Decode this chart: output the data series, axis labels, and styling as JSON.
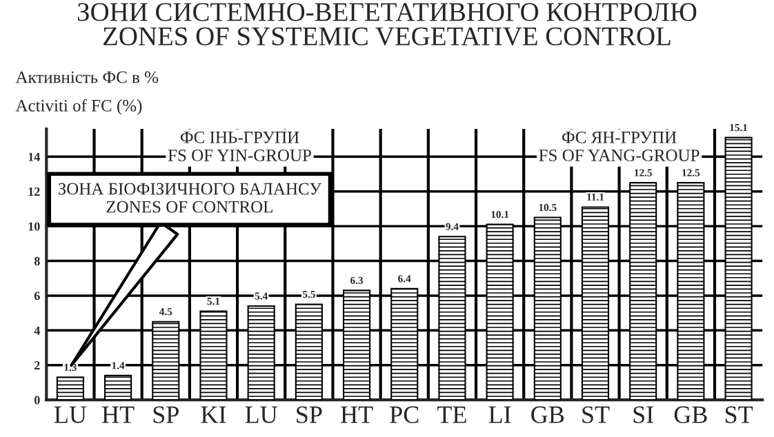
{
  "chart_data": {
    "type": "bar",
    "title": "ЗОНИ СИСТЕМНО-ВЕГЕТАТИВНОГО КОНТРОЛЮ\nZONES OF SYSTEMIC VEGETATIVE CONTROL",
    "ylabel": "Активність ФС в %\nActiviti of FC (%)",
    "categories": [
      "LU",
      "HT",
      "SP",
      "KI",
      "LU",
      "SP",
      "HT",
      "PC",
      "TE",
      "LI",
      "GB",
      "ST",
      "SI",
      "GB",
      "ST"
    ],
    "values": [
      1.3,
      1.4,
      4.5,
      5.1,
      5.4,
      5.5,
      6.3,
      6.4,
      9.4,
      10.1,
      10.5,
      11.1,
      12.5,
      12.5,
      15.1
    ],
    "value_labels": [
      "1.3",
      "1.4",
      "4.5",
      "5.1",
      "5.4",
      "5.5",
      "6.3",
      "6.4",
      "9.4",
      "10.1",
      "10.5",
      "11.1",
      "12.5",
      "12.5",
      "15.1"
    ],
    "color": "#000000",
    "ylim": [
      0,
      15.6
    ],
    "yticks": [
      0,
      2,
      4,
      6,
      8,
      10,
      12,
      14
    ],
    "grid": true,
    "annotations": [
      "ФС ІНЬ-ГРУПИ\nFS OF YIN-GROUP",
      "ФС ЯН-ГРУПИ\nFS OF YANG-GROUP",
      "ЗОНА БІОФІЗИЧНОГО БАЛАНСУ\nZONES OF CONTROL"
    ]
  }
}
